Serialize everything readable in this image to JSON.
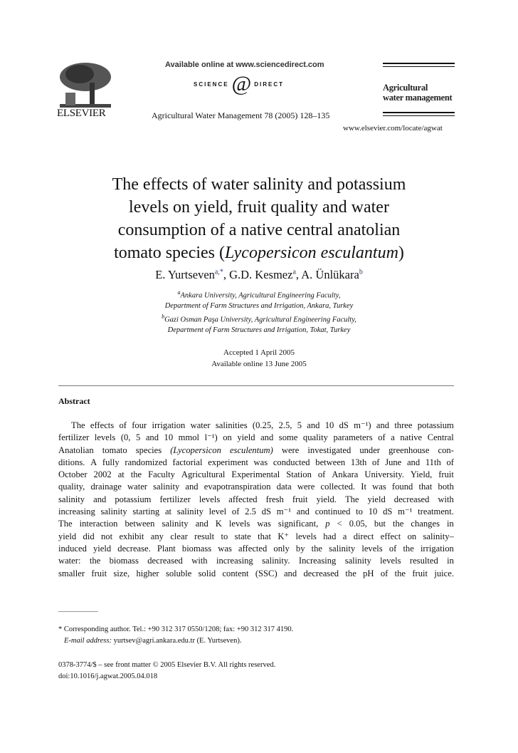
{
  "header": {
    "publisher_logo_text": "ELSEVIER",
    "available_online": "Available online at www.sciencedirect.com",
    "sciencedirect_logo": {
      "left": "SCIENCE",
      "at": "@",
      "right": "DIRECT"
    },
    "journal_reference": "Agricultural Water Management 78 (2005) 128–135",
    "journal_name_line1": "Agricultural",
    "journal_name_line2": "water management",
    "journal_url": "www.elsevier.com/locate/agwat"
  },
  "title": {
    "line1": "The effects of water salinity and potassium",
    "line2": "levels on yield, fruit quality and water",
    "line3": "consumption of a native central anatolian",
    "line4_pre": "tomato species (",
    "line4_italic": "Lycopersicon esculantum",
    "line4_post": ")"
  },
  "authors": [
    {
      "name": "E. Yurtseven",
      "sup": "a,*",
      "sep": ", "
    },
    {
      "name": "G.D. Kesmez",
      "sup": "a",
      "sep": ", "
    },
    {
      "name": "A. Ünlükara",
      "sup": "b",
      "sep": ""
    }
  ],
  "affiliations": [
    {
      "sup": "a",
      "line1": "Ankara University, Agricultural Engineering Faculty,",
      "line2": "Department of Farm Structures and Irrigation, Ankara, Turkey"
    },
    {
      "sup": "b",
      "line1": "Gazi Osman Paşa University, Agricultural Engineering Faculty,",
      "line2": "Department of Farm Structures and Irrigation, Tokat, Turkey"
    }
  ],
  "dates": {
    "accepted": "Accepted 1 April 2005",
    "available": "Available online 13 June 2005"
  },
  "abstract": {
    "heading": "Abstract",
    "lines": [
      "The effects of four irrigation water salinities (0.25, 2.5, 5 and 10 dS m⁻¹) and three potassium",
      "fertilizer levels (0, 5 and 10 mmol l⁻¹) on yield and some quality parameters of a native Central",
      "Anatolian tomato species (Lycopersicon esculentum) were investigated under greenhouse con-",
      "ditions. A fully randomized factorial experiment was conducted between 13th of June and 11th of",
      "October 2002 at the Faculty Agricultural Experimental Station of Ankara University. Yield, fruit",
      "quality, drainage water salinity and evapotranspiration data were collected. It was found that both",
      "salinity and potassium fertilizer levels affected fresh fruit yield. The yield decreased with",
      "increasing salinity starting at salinity level of 2.5 dS m⁻¹ and continued to 10 dS m⁻¹ treatment.",
      "The interaction between salinity and K levels was significant, p < 0.05, but the changes in",
      "yield did not exhibit any clear result to state that K⁺ levels had a direct effect on salinity–",
      "induced yield decrease. Plant biomass was affected only by the salinity levels of the irrigation",
      "water: the biomass decreased with increasing salinity. Increasing salinity levels resulted in",
      "smaller fruit size, higher soluble solid content (SSC) and decreased the pH of the fruit juice."
    ]
  },
  "footnote": {
    "line1": "* Corresponding author. Tel.: +90 312 317 0550/1208; fax: +90 312 317 4190.",
    "email_label": "E-mail address:",
    "email_rest": " yurtsev@agri.ankara.edu.tr (E. Yurtseven)."
  },
  "copyright": {
    "line1": "0378-3774/$ – see front matter © 2005 Elsevier B.V. All rights reserved.",
    "doi": "doi:10.1016/j.agwat.2005.04.018"
  }
}
